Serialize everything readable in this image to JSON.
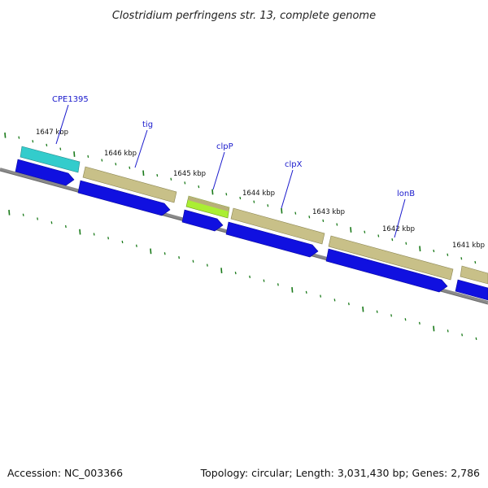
{
  "title": "Clostridium perfringens str. 13, complete genome",
  "footer": {
    "accession": "Accession: NC_003366",
    "summary": "Topology: circular; Length: 3,031,430 bp; Genes: 2,786"
  },
  "kbp_labels": [
    "1647 kbp",
    "1646 kbp",
    "1645 kbp",
    "1644 kbp",
    "1643 kbp",
    "1642 kbp",
    "1641 kbp"
  ],
  "genes": [
    {
      "name": "CPE1395",
      "color": "#33cccc"
    },
    {
      "name": "tig",
      "color": "#c8c088"
    },
    {
      "name": "clpP",
      "color": "#aaee33"
    },
    {
      "name": "clpX",
      "color": "#c8c088"
    },
    {
      "name": "lonB",
      "color": "#c8c088"
    }
  ],
  "colors": {
    "cds": "#1010e0",
    "gene_tan": "#c8c088",
    "backbone": "#888888",
    "ticks": "#1a7a1a",
    "label": "#1a1acc"
  }
}
